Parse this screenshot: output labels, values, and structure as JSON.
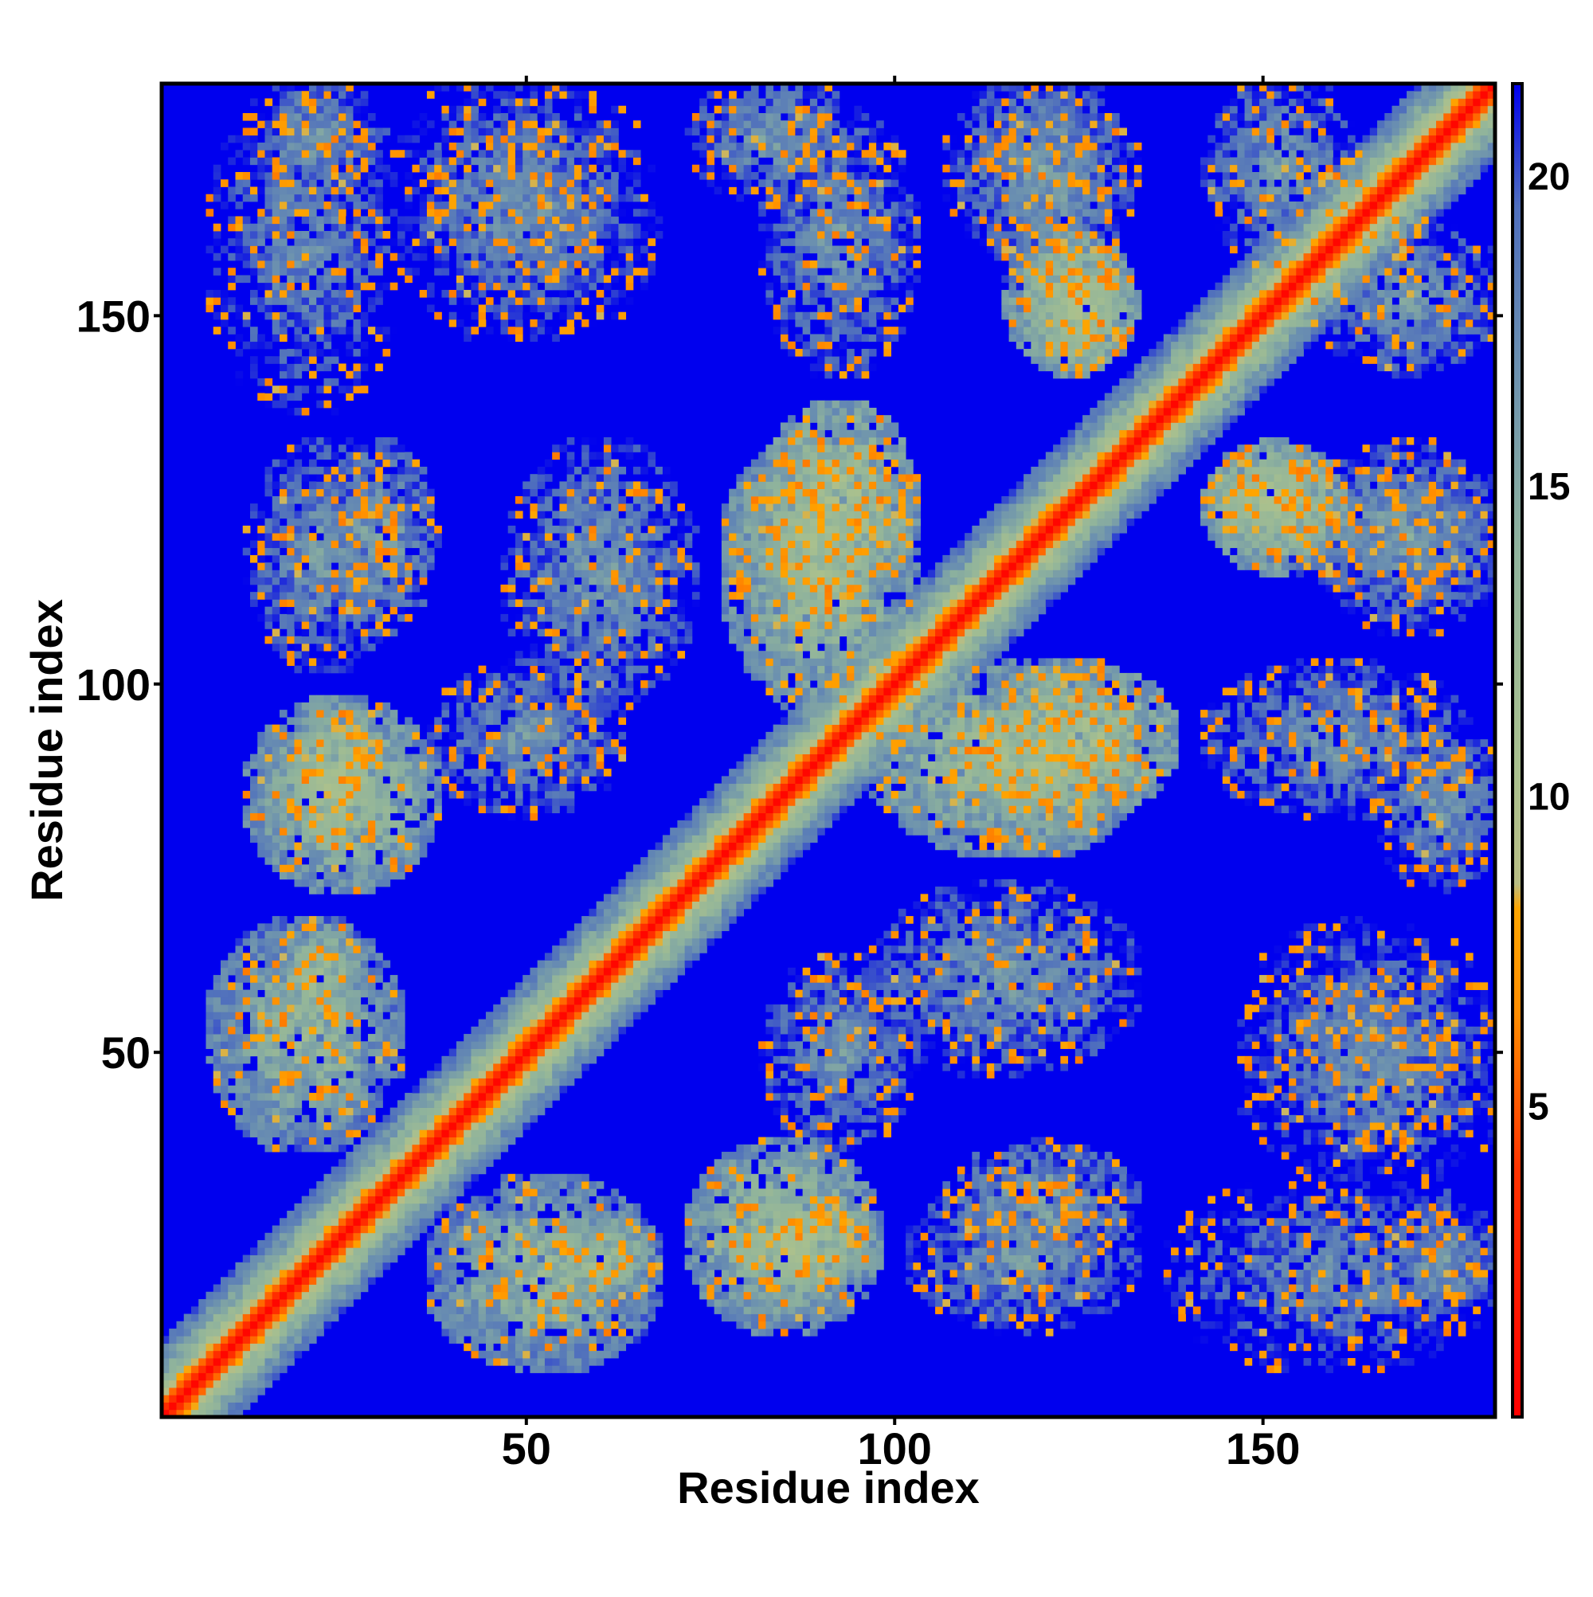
{
  "chart_data": {
    "type": "heatmap",
    "title": "",
    "xlabel": "Residue index",
    "ylabel": "Residue index",
    "n_residues": 181,
    "xlim": [
      0.5,
      181.5
    ],
    "ylim": [
      0.5,
      181.5
    ],
    "x_ticks": [
      50,
      100,
      150
    ],
    "y_ticks": [
      50,
      100,
      150
    ],
    "colorbar": {
      "ticks": [
        5,
        10,
        15,
        20
      ],
      "range": [
        0,
        21.5
      ],
      "stops": [
        {
          "value": 0,
          "color": "#ff0000"
        },
        {
          "value": 4,
          "color": "#ff3300"
        },
        {
          "value": 6.5,
          "color": "#ff8c00"
        },
        {
          "value": 8.2,
          "color": "#ffa500"
        },
        {
          "value": 8.6,
          "color": "#b8bd84"
        },
        {
          "value": 10.5,
          "color": "#a9c08e"
        },
        {
          "value": 14,
          "color": "#8fb39c"
        },
        {
          "value": 17,
          "color": "#6a8fb0"
        },
        {
          "value": 19.5,
          "color": "#4f6fbd"
        },
        {
          "value": 21.5,
          "color": "#0000ee"
        }
      ]
    },
    "background_value": 21.5,
    "background_color": "#0000ee",
    "contact_band_halfwidth": 3.5,
    "contact_regions": [
      {
        "i": [
          20,
          28
        ],
        "j": [
          80,
          95
        ],
        "value": 9
      },
      {
        "i": [
          18,
          26
        ],
        "j": [
          55,
          65
        ],
        "value": 10
      },
      {
        "i": [
          40,
          65
        ],
        "j": [
          10,
          30
        ],
        "value": 11
      },
      {
        "i": [
          75,
          95
        ],
        "j": [
          15,
          35
        ],
        "value": 10
      },
      {
        "i": [
          105,
          130
        ],
        "j": [
          15,
          30
        ],
        "value": 14
      },
      {
        "i": [
          140,
          178
        ],
        "j": [
          10,
          30
        ],
        "value": 15
      },
      {
        "i": [
          50,
          70
        ],
        "j": [
          100,
          130
        ],
        "value": 14
      },
      {
        "i": [
          80,
          98
        ],
        "j": [
          110,
          130
        ],
        "value": 10
      },
      {
        "i": [
          100,
          130
        ],
        "j": [
          80,
          100
        ],
        "value": 10
      },
      {
        "i": [
          115,
          135
        ],
        "j": [
          85,
          100
        ],
        "value": 9
      },
      {
        "i": [
          145,
          175
        ],
        "j": [
          85,
          100
        ],
        "value": 14
      },
      {
        "i": [
          145,
          158
        ],
        "j": [
          118,
          130
        ],
        "value": 9
      },
      {
        "i": [
          155,
          178
        ],
        "j": [
          115,
          128
        ],
        "value": 14
      },
      {
        "i": [
          120,
          130
        ],
        "j": [
          145,
          158
        ],
        "value": 9
      },
      {
        "i": [
          75,
          92
        ],
        "j": [
          168,
          180
        ],
        "value": 14
      },
      {
        "i": [
          15,
          28
        ],
        "j": [
          168,
          180
        ],
        "value": 14
      },
      {
        "i": [
          35,
          60
        ],
        "j": [
          150,
          180
        ],
        "value": 15
      },
      {
        "i": [
          110,
          130
        ],
        "j": [
          160,
          180
        ],
        "value": 14
      },
      {
        "i": [
          145,
          160
        ],
        "j": [
          160,
          180
        ],
        "value": 14
      },
      {
        "i": [
          150,
          178
        ],
        "j": [
          40,
          65
        ],
        "value": 15
      },
      {
        "i": [
          25,
          35
        ],
        "j": [
          110,
          130
        ],
        "value": 13
      },
      {
        "i": [
          40,
          60
        ],
        "j": [
          85,
          100
        ],
        "value": 14
      }
    ]
  }
}
